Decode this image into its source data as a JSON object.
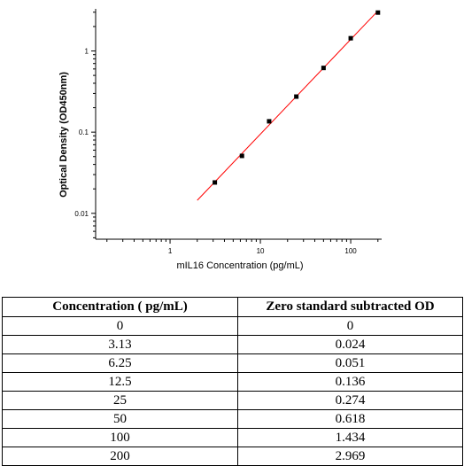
{
  "chart_data": {
    "type": "scatter",
    "title": "",
    "xlabel": "mIL16 Concentration (pg/mL)",
    "ylabel": "Optical Density (OD450nm)",
    "xscale": "log",
    "yscale": "log",
    "xlim": [
      0.15,
      220
    ],
    "ylim": [
      0.0048,
      3.3
    ],
    "xticks": [
      1,
      10,
      100
    ],
    "xtick_labels": [
      "1",
      "10",
      "100"
    ],
    "yticks": [
      0.01,
      0.1,
      1
    ],
    "ytick_labels": [
      "0.01",
      "0.1",
      "1"
    ],
    "grid": false,
    "marker_color": "#000000",
    "fit_line_color": "#ff0000",
    "fit_line_x_range": [
      2,
      200
    ],
    "x": [
      3.13,
      6.25,
      12.5,
      25,
      50,
      100,
      200
    ],
    "y": [
      0.024,
      0.051,
      0.136,
      0.274,
      0.618,
      1.434,
      2.969
    ]
  },
  "table": {
    "headers": [
      "Concentration ( pg/mL)",
      "Zero standard subtracted OD"
    ],
    "rows": [
      [
        "0",
        "0"
      ],
      [
        "3.13",
        "0.024"
      ],
      [
        "6.25",
        "0.051"
      ],
      [
        "12.5",
        "0.136"
      ],
      [
        "25",
        "0.274"
      ],
      [
        "50",
        "0.618"
      ],
      [
        "100",
        "1.434"
      ],
      [
        "200",
        "2.969"
      ]
    ]
  }
}
